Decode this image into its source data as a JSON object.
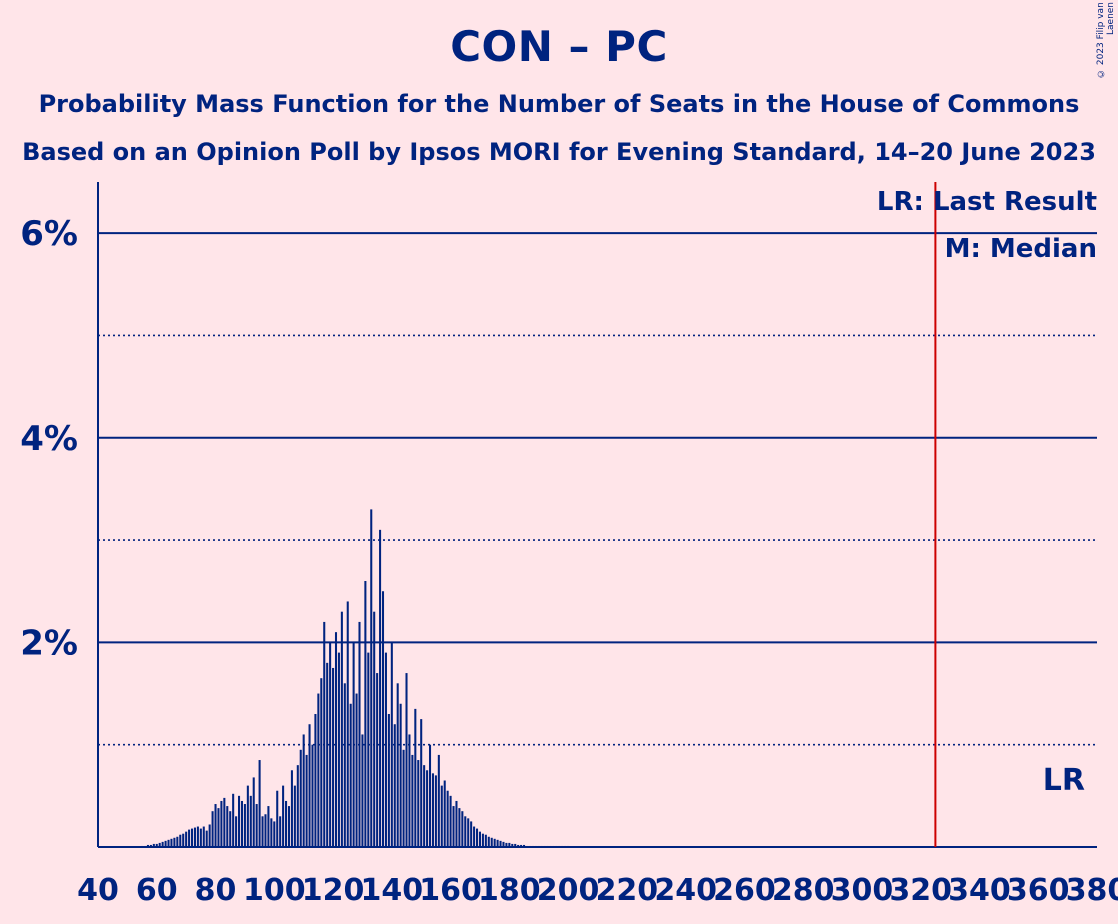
{
  "header": {
    "title": "CON – PC",
    "subtitle1": "Probability Mass Function for the Number of Seats in the House of Commons",
    "subtitle2": "Based on an Opinion Poll by Ipsos MORI for Evening Standard, 14–20 June 2023",
    "copyright": "© 2023 Filip van Laenen"
  },
  "chart_data": {
    "type": "bar",
    "xlim": [
      40,
      380
    ],
    "ylim": [
      0,
      6.5
    ],
    "y_ticks": [
      {
        "value": 2,
        "label": "2%"
      },
      {
        "value": 4,
        "label": "4%"
      },
      {
        "value": 6,
        "label": "6%"
      }
    ],
    "y_minor_ticks": [
      1,
      3,
      5
    ],
    "x_ticks": [
      40,
      60,
      80,
      100,
      120,
      140,
      160,
      180,
      200,
      220,
      240,
      260,
      280,
      300,
      320,
      340,
      360,
      380
    ],
    "last_result": 325,
    "last_result_marker": "LR",
    "legend": [
      "LR: Last Result",
      "M: Median"
    ],
    "colors": {
      "axis": "#00237F",
      "background": "#FFE5E9",
      "last_result": "#CC0000",
      "bars": "#00237F"
    },
    "x": [
      55,
      56,
      57,
      58,
      59,
      60,
      61,
      62,
      63,
      64,
      65,
      66,
      67,
      68,
      69,
      70,
      71,
      72,
      73,
      74,
      75,
      76,
      77,
      78,
      79,
      80,
      81,
      82,
      83,
      84,
      85,
      86,
      87,
      88,
      89,
      90,
      91,
      92,
      93,
      94,
      95,
      96,
      97,
      98,
      99,
      100,
      101,
      102,
      103,
      104,
      105,
      106,
      107,
      108,
      109,
      110,
      111,
      112,
      113,
      114,
      115,
      116,
      117,
      118,
      119,
      120,
      121,
      122,
      123,
      124,
      125,
      126,
      127,
      128,
      129,
      130,
      131,
      132,
      133,
      134,
      135,
      136,
      137,
      138,
      139,
      140,
      141,
      142,
      143,
      144,
      145,
      146,
      147,
      148,
      149,
      150,
      151,
      152,
      153,
      154,
      155,
      156,
      157,
      158,
      159,
      160,
      161,
      162,
      163,
      164,
      165,
      166,
      167,
      168,
      169,
      170,
      171,
      172,
      173,
      174,
      175,
      176,
      177,
      178,
      179,
      180,
      181,
      182,
      183,
      184,
      185,
      186,
      187,
      188,
      189,
      190,
      191,
      192,
      193,
      194,
      195,
      196,
      197,
      198,
      199,
      200
    ],
    "values": [
      0.01,
      0.01,
      0.02,
      0.02,
      0.03,
      0.03,
      0.04,
      0.05,
      0.06,
      0.07,
      0.08,
      0.09,
      0.1,
      0.12,
      0.13,
      0.15,
      0.17,
      0.18,
      0.19,
      0.2,
      0.18,
      0.2,
      0.16,
      0.22,
      0.35,
      0.42,
      0.38,
      0.45,
      0.48,
      0.4,
      0.35,
      0.52,
      0.3,
      0.5,
      0.45,
      0.42,
      0.6,
      0.5,
      0.68,
      0.42,
      0.85,
      0.3,
      0.32,
      0.4,
      0.28,
      0.25,
      0.55,
      0.3,
      0.6,
      0.45,
      0.4,
      0.75,
      0.6,
      0.8,
      0.95,
      1.1,
      0.9,
      1.2,
      1.0,
      1.3,
      1.5,
      1.65,
      2.2,
      1.8,
      2.0,
      1.75,
      2.1,
      1.9,
      2.3,
      1.6,
      2.4,
      1.4,
      2.0,
      1.5,
      2.2,
      1.1,
      2.6,
      1.9,
      3.3,
      2.3,
      1.7,
      3.1,
      2.5,
      1.9,
      1.3,
      2.0,
      1.2,
      1.6,
      1.4,
      0.95,
      1.7,
      1.1,
      0.9,
      1.35,
      0.85,
      1.25,
      0.8,
      0.75,
      1.0,
      0.72,
      0.7,
      0.9,
      0.6,
      0.65,
      0.55,
      0.5,
      0.4,
      0.45,
      0.38,
      0.35,
      0.3,
      0.28,
      0.25,
      0.2,
      0.18,
      0.15,
      0.13,
      0.12,
      0.1,
      0.09,
      0.08,
      0.07,
      0.06,
      0.05,
      0.04,
      0.04,
      0.03,
      0.03,
      0.02,
      0.02,
      0.02,
      0.01,
      0.01,
      0.01,
      0.01,
      0.01,
      0.01,
      0.01,
      0.01,
      0.01,
      0.01,
      0.01,
      0.01,
      0.01,
      0.01,
      0.01
    ]
  }
}
